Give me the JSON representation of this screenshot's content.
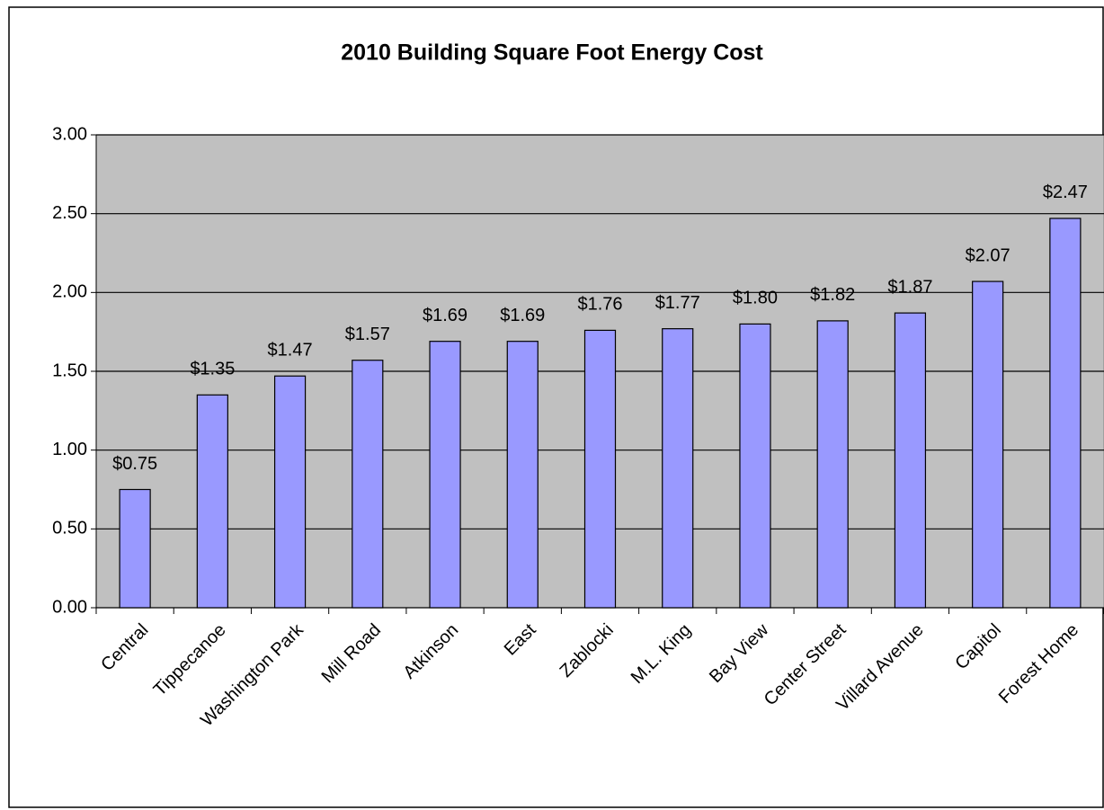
{
  "chart_data": {
    "type": "bar",
    "title": "2010 Building Square Foot Energy Cost",
    "categories": [
      "Central",
      "Tippecanoe",
      "Washington Park",
      "Mill Road",
      "Atkinson",
      "East",
      "Zablocki",
      "M.L. King",
      "Bay View",
      "Center Street",
      "Villard Avenue",
      "Capitol",
      "Forest Home"
    ],
    "values": [
      0.75,
      1.35,
      1.47,
      1.57,
      1.69,
      1.69,
      1.76,
      1.77,
      1.8,
      1.82,
      1.87,
      2.07,
      2.47
    ],
    "value_labels": [
      "$0.75",
      "$1.35",
      "$1.47",
      "$1.57",
      "$1.69",
      "$1.69",
      "$1.76",
      "$1.77",
      "$1.80",
      "$1.82",
      "$1.87",
      "$2.07",
      "$2.47"
    ],
    "color": "#9999ff",
    "ylim": [
      0,
      3
    ],
    "yticks": [
      {
        "value": 0,
        "label": "0.00"
      },
      {
        "value": 0.5,
        "label": "0.50"
      },
      {
        "value": 1,
        "label": "1.00"
      },
      {
        "value": 1.5,
        "label": "1.50"
      },
      {
        "value": 2,
        "label": "2.00"
      },
      {
        "value": 2.5,
        "label": "2.50"
      },
      {
        "value": 3,
        "label": "3.00"
      }
    ],
    "grid": true
  }
}
